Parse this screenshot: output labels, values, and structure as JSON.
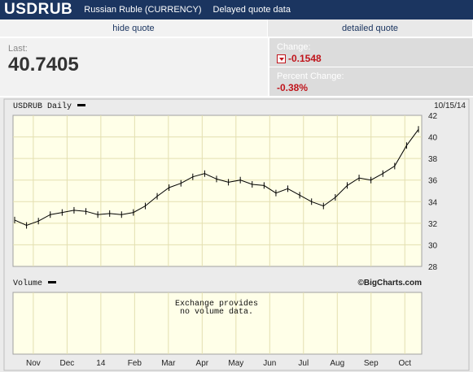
{
  "header": {
    "symbol": "USDRUB",
    "instrument": "Russian Ruble (CURRENCY)",
    "delay_note": "Delayed quote data"
  },
  "tabs": {
    "hide_quote": "hide quote",
    "detailed_quote": "detailed quote"
  },
  "quote": {
    "last_label": "Last:",
    "last_value": "40.7405",
    "change_label": "Change:",
    "change_value": "-0.1548",
    "percent_label": "Percent Change:",
    "percent_value": "-0.38%"
  },
  "chart": {
    "title": "USDRUB Daily",
    "date": "10/15/14",
    "volume_title": "Volume",
    "credit": "©BigCharts.com",
    "no_volume_line1": "Exchange provides",
    "no_volume_line2": "no volume data.",
    "colors": {
      "plot_bg": "#ffffe8",
      "grid": "#e3dfb0",
      "line": "#000000"
    }
  },
  "chart_data": {
    "type": "line",
    "title": "USDRUB Daily",
    "ylim": [
      28,
      42
    ],
    "y_ticks": [
      28,
      30,
      32,
      34,
      36,
      38,
      40,
      42
    ],
    "x_tick_labels": [
      "Nov",
      "Dec",
      "14",
      "Feb",
      "Mar",
      "Apr",
      "May",
      "Jun",
      "Jul",
      "Aug",
      "Sep",
      "Oct"
    ],
    "series": [
      {
        "name": "USDRUB",
        "x": [
          "Oct",
          "Oct",
          "Nov",
          "Nov",
          "Nov",
          "Nov",
          "Dec",
          "Dec",
          "Dec",
          "14",
          "Jan",
          "Jan",
          "Feb",
          "Feb",
          "Mar",
          "Mar",
          "Mar",
          "Apr",
          "Apr",
          "May",
          "May",
          "May",
          "Jun",
          "Jun",
          "Jun",
          "Jul",
          "Jul",
          "Jul",
          "Aug",
          "Aug",
          "Sep",
          "Sep",
          "Sep",
          "Oct",
          "Oct"
        ],
        "values": [
          32.3,
          31.8,
          32.2,
          32.8,
          33.0,
          33.2,
          33.1,
          32.8,
          32.9,
          32.8,
          33.0,
          33.6,
          34.5,
          35.3,
          35.7,
          36.3,
          36.6,
          36.1,
          35.8,
          36.0,
          35.6,
          35.5,
          34.8,
          35.2,
          34.6,
          34.0,
          33.6,
          34.4,
          35.5,
          36.2,
          36.0,
          36.6,
          37.3,
          39.2,
          40.7
        ]
      }
    ],
    "grid": true
  }
}
